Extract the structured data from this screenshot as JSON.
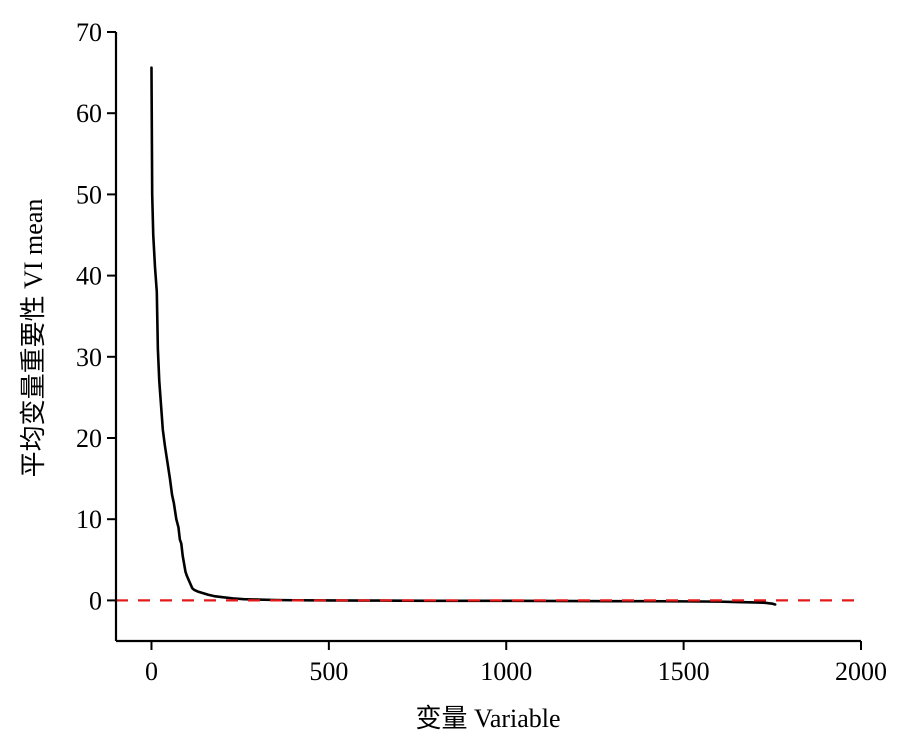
{
  "chart_data": {
    "type": "line",
    "xlabel": "变量 Variable",
    "ylabel": "平均变量重要性 VI mean",
    "xlim": [
      -100,
      2000
    ],
    "ylim": [
      -5,
      70
    ],
    "xticks": [
      0,
      500,
      1000,
      1500,
      2000
    ],
    "yticks": [
      0,
      10,
      20,
      30,
      40,
      50,
      60,
      70
    ],
    "grid": false,
    "legend": "none",
    "series": [
      {
        "color": "#000000",
        "style": "solid",
        "x": [
          0,
          2,
          5,
          10,
          15,
          18,
          22,
          27,
          32,
          38,
          45,
          52,
          58,
          63,
          70,
          76,
          80,
          84,
          88,
          92,
          96,
          100,
          105,
          110,
          115,
          120,
          130,
          145,
          160,
          180,
          200,
          230,
          260,
          300,
          350,
          400,
          500,
          600,
          700,
          800,
          900,
          1000,
          1100,
          1200,
          1300,
          1400,
          1500,
          1600,
          1650,
          1700,
          1730,
          1750,
          1758
        ],
        "y": [
          65.6,
          50,
          45,
          41,
          38,
          31,
          27,
          24,
          21,
          19,
          17,
          15,
          13,
          12,
          10,
          9,
          7.5,
          7,
          5.5,
          4.5,
          3.5,
          3,
          2.5,
          2,
          1.5,
          1.3,
          1.1,
          0.9,
          0.7,
          0.5,
          0.4,
          0.25,
          0.15,
          0.1,
          0.05,
          0.02,
          0,
          -0.02,
          -0.03,
          -0.05,
          -0.05,
          -0.05,
          -0.07,
          -0.08,
          -0.1,
          -0.1,
          -0.12,
          -0.15,
          -0.2,
          -0.25,
          -0.3,
          -0.4,
          -0.5
        ]
      },
      {
        "color": "#e31a1c",
        "style": "dashed",
        "x": [
          -100,
          2000
        ],
        "y": [
          0,
          0
        ]
      }
    ]
  }
}
